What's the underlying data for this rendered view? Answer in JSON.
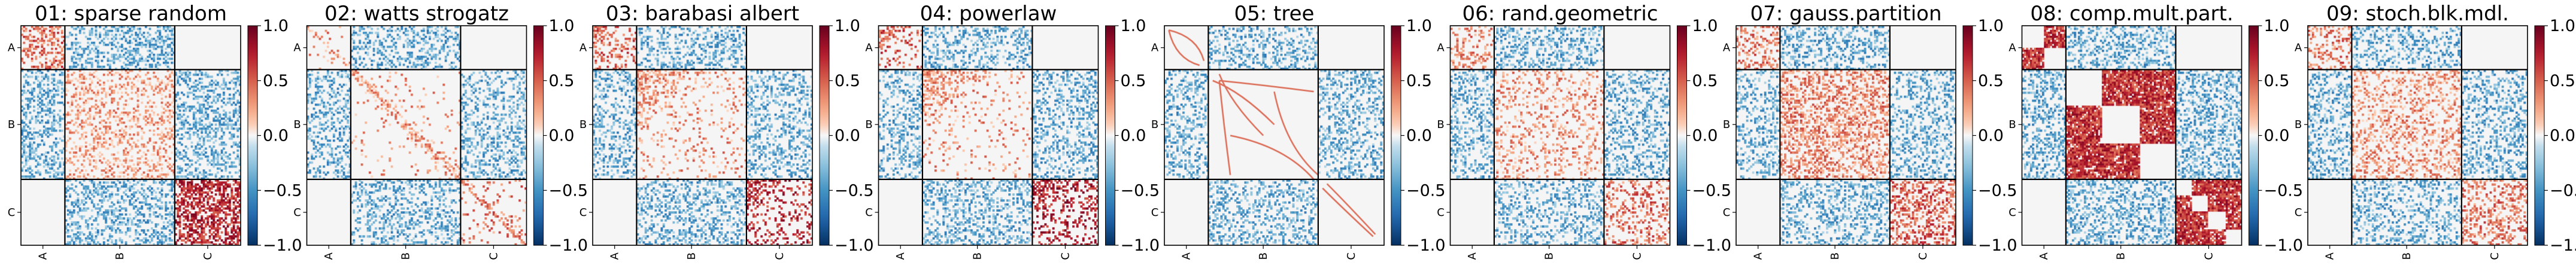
{
  "figure": {
    "colormap": "RdBu_r",
    "block_sizes": [
      0.2,
      0.5,
      0.3
    ],
    "missing_color": "#f5f5f5"
  },
  "chart_data": [
    {
      "type": "heatmap",
      "title": "01: sparse random",
      "pattern": "random",
      "categories": [
        "A",
        "B",
        "C"
      ],
      "block_values": [
        [
          0.45,
          -0.4,
          null
        ],
        [
          -0.4,
          0.25,
          -0.4
        ],
        [
          null,
          -0.4,
          0.7
        ]
      ],
      "block_density": [
        [
          0.4,
          0.35,
          0
        ],
        [
          0.35,
          0.3,
          0.35
        ],
        [
          0,
          0.35,
          0.55
        ]
      ],
      "colorbar": {
        "min": -1.0,
        "max": 1.0,
        "ticks": [
          "1.0",
          "0.5",
          "0.0",
          "−0.5",
          "−1.0"
        ]
      }
    },
    {
      "type": "heatmap",
      "title": "02: watts strogatz",
      "pattern": "diagonal",
      "categories": [
        "A",
        "B",
        "C"
      ],
      "block_values": [
        [
          0.3,
          -0.4,
          null
        ],
        [
          -0.4,
          0.3,
          -0.4
        ],
        [
          null,
          -0.4,
          0.4
        ]
      ],
      "block_density": [
        [
          0.05,
          0.3,
          0
        ],
        [
          0.3,
          0.04,
          0.3
        ],
        [
          0,
          0.3,
          0.08
        ]
      ],
      "colorbar": {
        "min": -1.0,
        "max": 1.0,
        "ticks": [
          "1.0",
          "0.5",
          "0.0",
          "−0.5",
          "−1.0"
        ]
      }
    },
    {
      "type": "heatmap",
      "title": "03: barabasi albert",
      "pattern": "hub",
      "categories": [
        "A",
        "B",
        "C"
      ],
      "block_values": [
        [
          0.45,
          -0.4,
          null
        ],
        [
          -0.4,
          0.3,
          -0.4
        ],
        [
          null,
          -0.4,
          0.7
        ]
      ],
      "block_density": [
        [
          0.25,
          0.3,
          0
        ],
        [
          0.3,
          0.1,
          0.3
        ],
        [
          0,
          0.3,
          0.2
        ]
      ],
      "colorbar": {
        "min": -1.0,
        "max": 1.0,
        "ticks": [
          "1.0",
          "0.5",
          "0.0",
          "−0.5",
          "−1.0"
        ]
      }
    },
    {
      "type": "heatmap",
      "title": "04: powerlaw",
      "pattern": "hub",
      "categories": [
        "A",
        "B",
        "C"
      ],
      "block_values": [
        [
          0.5,
          -0.4,
          null
        ],
        [
          -0.4,
          0.3,
          -0.4
        ],
        [
          null,
          -0.4,
          0.75
        ]
      ],
      "block_density": [
        [
          0.2,
          0.3,
          0
        ],
        [
          0.3,
          0.08,
          0.3
        ],
        [
          0,
          0.3,
          0.25
        ]
      ],
      "colorbar": {
        "min": -1.0,
        "max": 1.0,
        "ticks": [
          "1.0",
          "0.5",
          "0.0",
          "−0.5",
          "−1.0"
        ]
      }
    },
    {
      "type": "heatmap",
      "title": "05: tree",
      "pattern": "tree",
      "categories": [
        "A",
        "B",
        "C"
      ],
      "block_values": [
        [
          0.5,
          -0.4,
          null
        ],
        [
          -0.4,
          0.5,
          -0.4
        ],
        [
          null,
          -0.4,
          0.5
        ]
      ],
      "block_density": [
        [
          0,
          0.3,
          0
        ],
        [
          0.3,
          0,
          0.3
        ],
        [
          0,
          0.3,
          0
        ]
      ],
      "colorbar": {
        "min": -1.0,
        "max": 1.0,
        "ticks": [
          "1.0",
          "0.5",
          "0.0",
          "−0.5",
          "−1.0"
        ]
      }
    },
    {
      "type": "heatmap",
      "title": "06: rand.geometric",
      "pattern": "random",
      "categories": [
        "A",
        "B",
        "C"
      ],
      "block_values": [
        [
          0.35,
          -0.4,
          null
        ],
        [
          -0.4,
          0.3,
          -0.4
        ],
        [
          null,
          -0.4,
          0.45
        ]
      ],
      "block_density": [
        [
          0.25,
          0.3,
          0
        ],
        [
          0.3,
          0.2,
          0.3
        ],
        [
          0,
          0.3,
          0.25
        ]
      ],
      "colorbar": {
        "min": -1.0,
        "max": 1.0,
        "ticks": [
          "1.0",
          "0.5",
          "0.0",
          "−0.5",
          "−1.0"
        ]
      }
    },
    {
      "type": "heatmap",
      "title": "07: gauss.partition",
      "pattern": "random",
      "categories": [
        "A",
        "B",
        "C"
      ],
      "block_values": [
        [
          0.4,
          -0.4,
          null
        ],
        [
          -0.4,
          0.35,
          -0.4
        ],
        [
          null,
          -0.4,
          0.5
        ]
      ],
      "block_density": [
        [
          0.35,
          0.3,
          0
        ],
        [
          0.3,
          0.4,
          0.3
        ],
        [
          0,
          0.3,
          0.4
        ]
      ],
      "colorbar": {
        "min": -1.0,
        "max": 1.0,
        "ticks": [
          "1.0",
          "0.5",
          "0.0",
          "−0.5",
          "−1.0"
        ]
      }
    },
    {
      "type": "heatmap",
      "title": "08: comp.mult.part.",
      "pattern": "cliques",
      "categories": [
        "A",
        "B",
        "C"
      ],
      "block_values": [
        [
          0.65,
          -0.4,
          null
        ],
        [
          -0.4,
          0.65,
          -0.4
        ],
        [
          null,
          -0.4,
          0.65
        ]
      ],
      "block_density": [
        [
          0.85,
          0.35,
          0
        ],
        [
          0.35,
          0.85,
          0.35
        ],
        [
          0,
          0.35,
          0.85
        ]
      ],
      "colorbar": {
        "min": -1.0,
        "max": 1.0,
        "ticks": [
          "1.0",
          "0.5",
          "0.0",
          "−0.5",
          "−1.0"
        ]
      }
    },
    {
      "type": "heatmap",
      "title": "09: stoch.blk.mdl.",
      "pattern": "random",
      "categories": [
        "A",
        "B",
        "C"
      ],
      "block_values": [
        [
          0.4,
          -0.4,
          null
        ],
        [
          -0.4,
          0.3,
          -0.4
        ],
        [
          null,
          -0.4,
          0.4
        ]
      ],
      "block_density": [
        [
          0.3,
          0.3,
          0
        ],
        [
          0.3,
          0.3,
          0.3
        ],
        [
          0,
          0.3,
          0.3
        ]
      ],
      "colorbar": {
        "min": -1.0,
        "max": 1.0,
        "ticks": [
          "1.0",
          "0.5",
          "0.0",
          "−0.5",
          "−1.0"
        ]
      }
    }
  ]
}
